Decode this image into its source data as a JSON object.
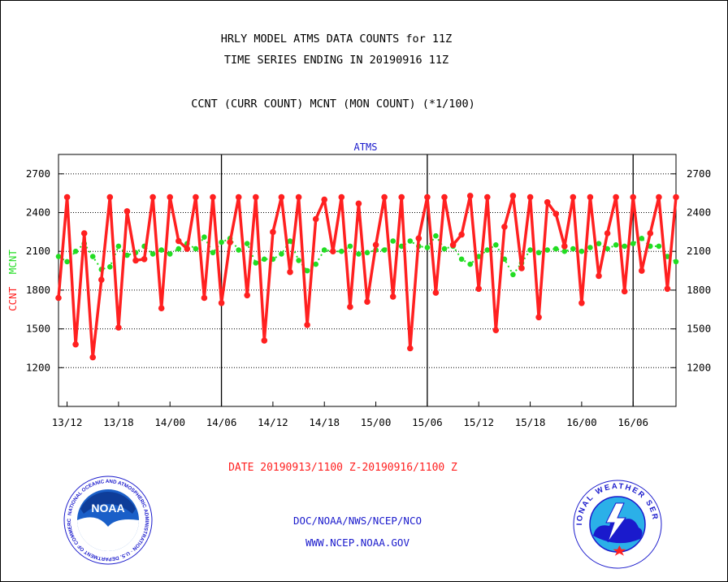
{
  "page": {
    "title_line1": "HRLY MODEL ATMS DATA COUNTS for 11Z",
    "title_line2": "TIME SERIES ENDING IN 20190916 11Z",
    "subtitle": "CCNT (CURR COUNT) MCNT (MON COUNT) (*1/100)",
    "panel_label": "ATMS",
    "date_range": "DATE 20190913/1100 Z-20190916/1100 Z",
    "credit_org": "DOC/NOAA/NWS/NCEP/NCO",
    "credit_url": "WWW.NCEP.NOAA.GOV",
    "left_logo": {
      "name": "noaa-logo",
      "text": "NOAA",
      "ring_text": "NATIONAL OCEANIC AND ATMOSPHERIC ADMINISTRATION · U.S. DEPARTMENT OF COMMERCE"
    },
    "right_logo": {
      "name": "nws-logo",
      "ring_text": "NATIONAL WEATHER SERVICE"
    }
  },
  "colors": {
    "ccnt": "#ff2020",
    "mcnt": "#22dd22",
    "text_red": "#ff2020",
    "text_blue": "#1a1acc",
    "axis": "#000000"
  },
  "chart_data": {
    "type": "line",
    "ylabel_parts": [
      {
        "text": "CCNT",
        "color": "#ff2020"
      },
      {
        "text": "MCNT",
        "color": "#22dd22"
      }
    ],
    "ylim": [
      900,
      2850
    ],
    "yticks": [
      1200,
      1500,
      1800,
      2100,
      2400,
      2700
    ],
    "xlim": [
      0,
      72
    ],
    "xticks": [
      {
        "x": 1,
        "label": "13/12"
      },
      {
        "x": 7,
        "label": "13/18"
      },
      {
        "x": 13,
        "label": "14/00"
      },
      {
        "x": 19,
        "label": "14/06"
      },
      {
        "x": 25,
        "label": "14/12"
      },
      {
        "x": 31,
        "label": "14/18"
      },
      {
        "x": 37,
        "label": "15/00"
      },
      {
        "x": 43,
        "label": "15/06"
      },
      {
        "x": 49,
        "label": "15/12"
      },
      {
        "x": 55,
        "label": "15/18"
      },
      {
        "x": 61,
        "label": "16/00"
      },
      {
        "x": 67,
        "label": "16/06"
      }
    ],
    "day_boundaries": [
      19,
      43,
      67
    ],
    "grid": true,
    "series": [
      {
        "name": "CCNT",
        "color": "#ff2020",
        "values": [
          1740,
          2520,
          1380,
          2240,
          1280,
          1880,
          2520,
          1510,
          2410,
          2030,
          2040,
          2520,
          1660,
          2520,
          2180,
          2120,
          2520,
          1740,
          2520,
          1700,
          2170,
          2520,
          1760,
          2520,
          1410,
          2250,
          2520,
          1940,
          2520,
          1530,
          2350,
          2500,
          2100,
          2520,
          1670,
          2470,
          1710,
          2150,
          2520,
          1750,
          2520,
          1350,
          2200,
          2520,
          1780,
          2520,
          2150,
          2230,
          2530,
          1810,
          2520,
          1490,
          2290,
          2530,
          1970,
          2520,
          1590,
          2480,
          2390,
          2140,
          2520,
          1700,
          2520,
          1910,
          2240,
          2520,
          1790,
          2520,
          1950,
          2240,
          2520,
          1810,
          2520
        ]
      },
      {
        "name": "MCNT",
        "color": "#22dd22",
        "values": [
          2060,
          2020,
          2100,
          2160,
          2060,
          1960,
          1980,
          2140,
          2070,
          2090,
          2140,
          2080,
          2110,
          2080,
          2120,
          2160,
          2120,
          2210,
          2090,
          2170,
          2200,
          2110,
          2160,
          2010,
          2040,
          2040,
          2080,
          2180,
          2030,
          1950,
          2000,
          2110,
          2100,
          2100,
          2140,
          2080,
          2090,
          2110,
          2110,
          2180,
          2140,
          2180,
          2140,
          2130,
          2220,
          2120,
          2140,
          2040,
          2000,
          2060,
          2110,
          2150,
          2040,
          1920,
          2010,
          2110,
          2090,
          2110,
          2120,
          2100,
          2120,
          2100,
          2130,
          2160,
          2120,
          2150,
          2140,
          2160,
          2200,
          2140,
          2140,
          2060,
          2020
        ]
      }
    ]
  }
}
